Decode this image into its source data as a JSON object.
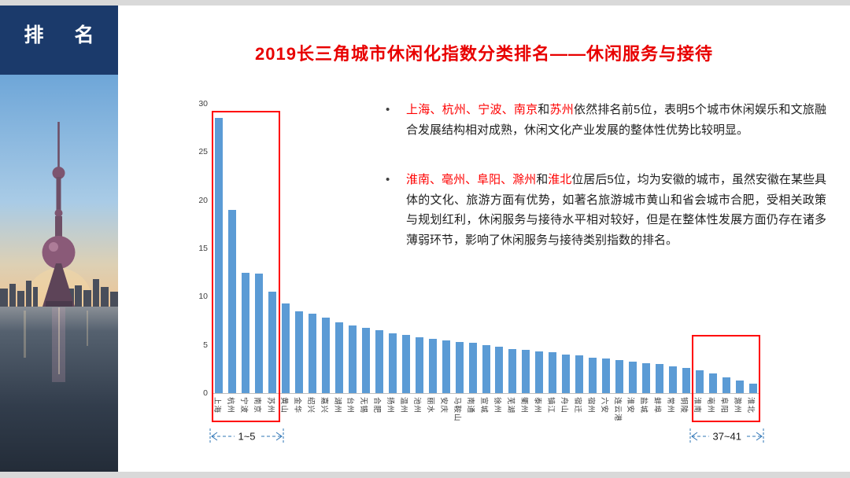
{
  "sidebar": {
    "title": "排 名"
  },
  "header": {
    "title": "2019长三角城市休闲化指数分类排名——休闲服务与接待"
  },
  "colors": {
    "title_red": "#e80000",
    "highlight_red": "#fe0000",
    "box_red": "#ff0000",
    "bar_blue": "#5B9BD5",
    "arrow_blue": "#2E75B6",
    "navy": "#1b3a6b"
  },
  "chart_data": {
    "type": "bar",
    "title": "2019长三角城市休闲化指数分类排名——休闲服务与接待",
    "xlabel": "",
    "ylabel": "",
    "ylim": [
      0,
      30
    ],
    "yticks": [
      0,
      5,
      10,
      15,
      20,
      25,
      30
    ],
    "grid": false,
    "legend": "none",
    "categories": [
      "上海",
      "杭州",
      "宁波",
      "南京",
      "苏州",
      "黄山",
      "金华",
      "绍兴",
      "嘉兴",
      "湖州",
      "台州",
      "无锡",
      "合肥",
      "扬州",
      "温州",
      "池州",
      "丽水",
      "安庆",
      "马鞍山",
      "南通",
      "宣城",
      "徐州",
      "芜湖",
      "衢州",
      "泰州",
      "镇江",
      "舟山",
      "宿迁",
      "宿州",
      "六安",
      "连云港",
      "淮安",
      "盐城",
      "蚌埠",
      "常州",
      "铜陵",
      "淮南",
      "亳州",
      "阜阳",
      "滁州",
      "淮北"
    ],
    "values": [
      28.5,
      19.0,
      12.5,
      12.4,
      10.5,
      9.3,
      8.5,
      8.2,
      7.8,
      7.3,
      7.0,
      6.8,
      6.5,
      6.2,
      6.0,
      5.8,
      5.6,
      5.5,
      5.3,
      5.2,
      5.0,
      4.8,
      4.6,
      4.5,
      4.3,
      4.2,
      4.0,
      3.9,
      3.7,
      3.6,
      3.4,
      3.3,
      3.1,
      3.0,
      2.8,
      2.6,
      2.4,
      2.0,
      1.6,
      1.3,
      1.0
    ],
    "annotations": [
      {
        "label": "1~5",
        "from": 0,
        "to": 4,
        "top_value": 29.3
      },
      {
        "label": "37~41",
        "from": 36,
        "to": 40,
        "top_value": 6.0
      }
    ]
  },
  "bullets": [
    {
      "segments": [
        {
          "t": "上海、杭州、宁波、南京",
          "red": true
        },
        {
          "t": "和",
          "red": false
        },
        {
          "t": "苏州",
          "red": true
        },
        {
          "t": "依然排名前5位，表明5个城市休闲娱乐和文旅融合发展结构相对成熟，休闲文化产业发展的整体性优势比较明显。",
          "red": false
        }
      ]
    },
    {
      "segments": [
        {
          "t": "淮南、亳州、阜阳、滁州",
          "red": true
        },
        {
          "t": "和",
          "red": false
        },
        {
          "t": "淮北",
          "red": true
        },
        {
          "t": "位居后5位，均为安徽的城市，虽然安徽在某些具体的文化、旅游方面有优势，如著名旅游城市黄山和省会城市合肥，受相关政策与规划红利，休闲服务与接待水平相对较好，但是在整体性发展方面仍存在诸多薄弱环节，影响了休闲服务与接待类别指数的排名。",
          "red": false
        }
      ]
    }
  ]
}
